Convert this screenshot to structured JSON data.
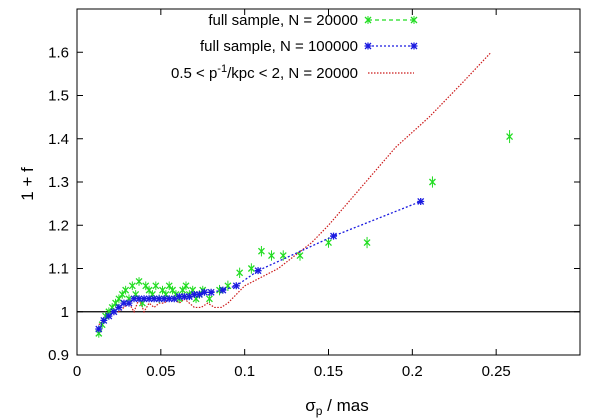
{
  "chart_data": {
    "type": "scatter",
    "xlabel": "σ_p / mas",
    "ylabel": "1 + f",
    "xlim": [
      0,
      0.3
    ],
    "ylim": [
      0.9,
      1.7
    ],
    "xticks": [
      "0",
      "0.05",
      "0.1",
      "0.15",
      "0.2",
      "0.25"
    ],
    "xtick_values": [
      0,
      0.05,
      0.1,
      0.15,
      0.2,
      0.25
    ],
    "yticks": [
      "0.9",
      "1",
      "1.1",
      "1.2",
      "1.3",
      "1.4",
      "1.5",
      "1.6"
    ],
    "ytick_values": [
      0.9,
      1.0,
      1.1,
      1.2,
      1.3,
      1.4,
      1.5,
      1.6
    ],
    "grid": false,
    "legend_position": "top-left",
    "reference_line": {
      "y": 1.0,
      "color": "#000000"
    },
    "series": [
      {
        "name": "full sample, N = 20000",
        "style": "points-with-errorbars",
        "color": "#22dd22",
        "x": [
          0.013,
          0.015,
          0.017,
          0.019,
          0.021,
          0.023,
          0.025,
          0.027,
          0.029,
          0.031,
          0.033,
          0.035,
          0.037,
          0.039,
          0.041,
          0.043,
          0.045,
          0.047,
          0.049,
          0.051,
          0.053,
          0.055,
          0.057,
          0.059,
          0.061,
          0.063,
          0.065,
          0.067,
          0.069,
          0.071,
          0.073,
          0.075,
          0.079,
          0.085,
          0.09,
          0.097,
          0.104,
          0.11,
          0.116,
          0.123,
          0.133,
          0.15,
          0.173,
          0.212,
          0.258
        ],
        "y": [
          0.95,
          0.97,
          0.99,
          1.0,
          1.01,
          1.02,
          1.03,
          1.04,
          1.05,
          1.03,
          1.06,
          1.04,
          1.07,
          1.02,
          1.06,
          1.05,
          1.04,
          1.06,
          1.03,
          1.05,
          1.04,
          1.06,
          1.05,
          1.04,
          1.03,
          1.05,
          1.06,
          1.04,
          1.05,
          1.03,
          1.04,
          1.05,
          1.03,
          1.05,
          1.06,
          1.09,
          1.1,
          1.14,
          1.13,
          1.13,
          1.13,
          1.16,
          1.16,
          1.3,
          1.405
        ],
        "yerr": [
          0.01,
          0.01,
          0.01,
          0.01,
          0.01,
          0.01,
          0.01,
          0.01,
          0.01,
          0.01,
          0.01,
          0.01,
          0.01,
          0.01,
          0.01,
          0.01,
          0.01,
          0.01,
          0.01,
          0.01,
          0.01,
          0.01,
          0.01,
          0.01,
          0.01,
          0.01,
          0.01,
          0.01,
          0.01,
          0.01,
          0.01,
          0.01,
          0.01,
          0.012,
          0.012,
          0.012,
          0.012,
          0.012,
          0.012,
          0.012,
          0.012,
          0.012,
          0.013,
          0.013,
          0.015
        ]
      },
      {
        "name": "full sample, N = 100000",
        "style": "points-with-dotted-line",
        "color": "#1a1ae0",
        "x": [
          0.013,
          0.016,
          0.019,
          0.022,
          0.025,
          0.028,
          0.031,
          0.034,
          0.037,
          0.04,
          0.043,
          0.046,
          0.049,
          0.052,
          0.055,
          0.058,
          0.061,
          0.064,
          0.067,
          0.07,
          0.073,
          0.076,
          0.08,
          0.087,
          0.095,
          0.108,
          0.153,
          0.205
        ],
        "y": [
          0.96,
          0.98,
          0.99,
          1.0,
          1.01,
          1.02,
          1.02,
          1.03,
          1.03,
          1.03,
          1.03,
          1.03,
          1.03,
          1.03,
          1.03,
          1.03,
          1.035,
          1.035,
          1.035,
          1.04,
          1.04,
          1.045,
          1.045,
          1.05,
          1.06,
          1.095,
          1.175,
          1.255
        ]
      },
      {
        "name": "0.5 < p⁻¹/kpc < 2, N = 20000",
        "style": "dotted-line",
        "color": "#cc1a1a",
        "x": [
          0.013,
          0.016,
          0.019,
          0.022,
          0.025,
          0.028,
          0.031,
          0.034,
          0.037,
          0.04,
          0.043,
          0.046,
          0.049,
          0.052,
          0.055,
          0.058,
          0.061,
          0.064,
          0.067,
          0.07,
          0.074,
          0.078,
          0.082,
          0.086,
          0.09,
          0.095,
          0.1,
          0.11,
          0.12,
          0.13,
          0.14,
          0.15,
          0.17,
          0.19,
          0.21,
          0.23,
          0.247
        ],
        "y": [
          0.97,
          0.98,
          0.99,
          1.0,
          1.0,
          1.01,
          1.02,
          1.0,
          1.03,
          1.0,
          1.02,
          1.01,
          1.02,
          1.02,
          1.03,
          1.03,
          1.02,
          1.03,
          1.02,
          1.01,
          1.01,
          1.02,
          1.01,
          1.01,
          1.02,
          1.04,
          1.06,
          1.08,
          1.1,
          1.13,
          1.16,
          1.2,
          1.29,
          1.38,
          1.45,
          1.53,
          1.6
        ]
      }
    ]
  },
  "legend": {
    "items": [
      {
        "label": "full sample, N = 20000",
        "color": "#22dd22",
        "marker": "x-dashed"
      },
      {
        "label": "full sample, N = 100000",
        "color": "#1a1ae0",
        "marker": "star-dotted"
      },
      {
        "label": "0.5 < p⁻¹/kpc < 2, N = 20000",
        "color": "#cc1a1a",
        "marker": "dotted"
      }
    ]
  },
  "axes": {
    "xlabel_main": "σ",
    "xlabel_sub": "p",
    "xlabel_rest": " / mas",
    "ylabel": "1 + f"
  }
}
